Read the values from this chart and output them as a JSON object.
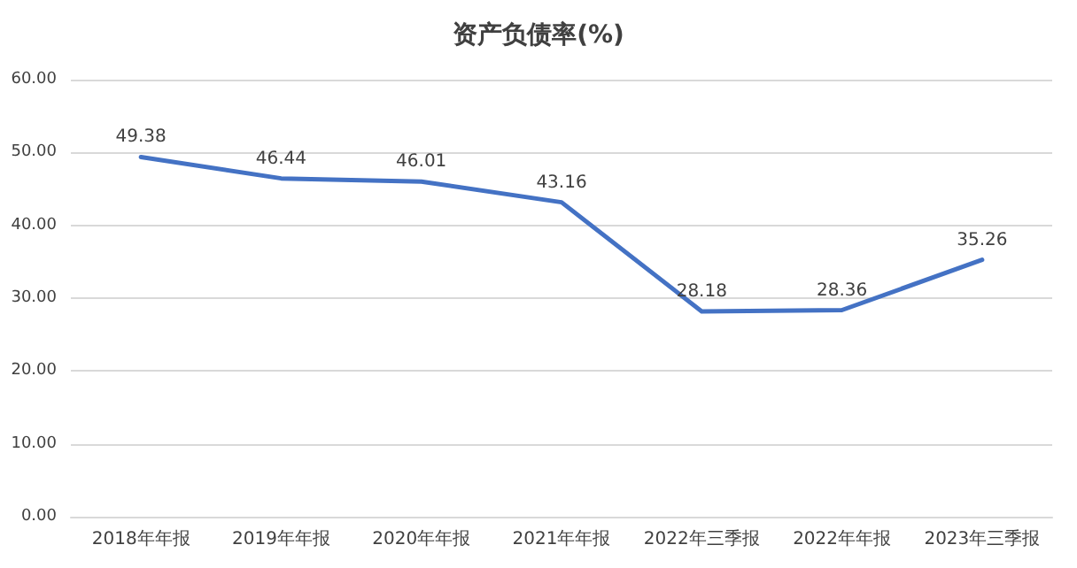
{
  "chart_data": {
    "type": "line",
    "title": "资产负债率(%)",
    "categories": [
      "2018年年报",
      "2019年年报",
      "2020年年报",
      "2021年年报",
      "2022年三季报",
      "2022年年报",
      "2023年三季报"
    ],
    "series": [
      {
        "color": "#4472c4",
        "values": [
          49.38,
          46.44,
          46.01,
          43.16,
          28.18,
          28.36,
          35.26
        ]
      }
    ],
    "ylim": [
      0,
      60
    ],
    "yticks": [
      {
        "value": 0,
        "label": "0.00"
      },
      {
        "value": 10,
        "label": "10.00"
      },
      {
        "value": 20,
        "label": "20.00"
      },
      {
        "value": 30,
        "label": "30.00"
      },
      {
        "value": 40,
        "label": "40.00"
      },
      {
        "value": 50,
        "label": "50.00"
      },
      {
        "value": 60,
        "label": "60.00"
      }
    ],
    "grid": "y",
    "marker": "none",
    "line_style": "solid",
    "data_labels": true
  }
}
